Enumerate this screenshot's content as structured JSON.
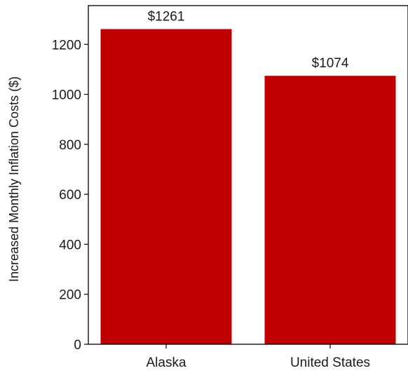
{
  "chart_data": {
    "type": "bar",
    "title": "",
    "xlabel": "",
    "ylabel": "Increased Monthly Inflation Costs ($)",
    "categories": [
      "Alaska",
      "United States"
    ],
    "values": [
      1261,
      1074
    ],
    "value_labels": [
      "$1261",
      "$1074"
    ],
    "ylim": [
      0,
      1355
    ],
    "yticks": [
      0,
      200,
      400,
      600,
      800,
      1000,
      1200
    ],
    "grid": false,
    "legend": "none",
    "bar_color": "#c00000",
    "frame": "left-top-right-bottom"
  }
}
